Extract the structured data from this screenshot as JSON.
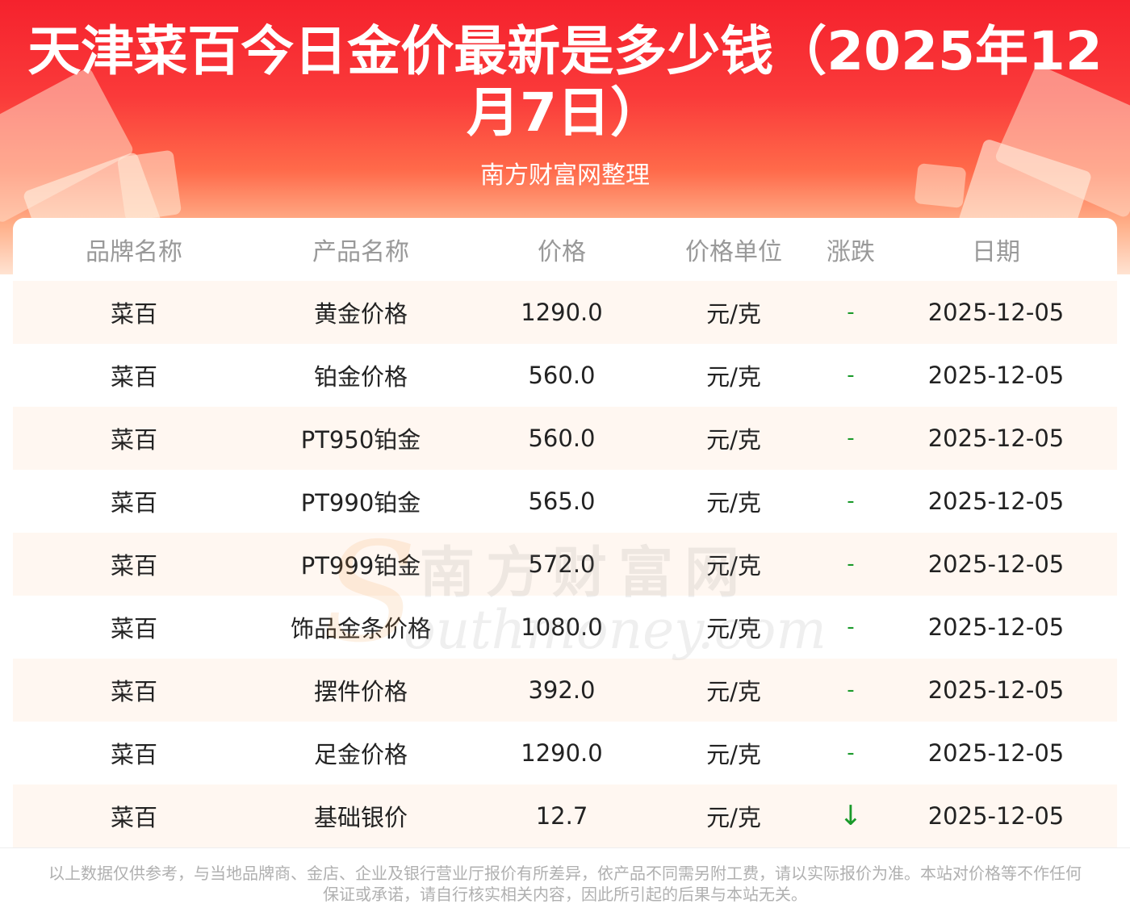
{
  "header": {
    "title": "天津菜百今日金价最新是多少钱（2025年12月7日）",
    "subtitle": "南方财富网整理"
  },
  "colors": {
    "header_red": "#f5222d",
    "row_alt": "#fff7f1",
    "change_green": "#1a9a2a",
    "header_text": "#999999"
  },
  "table": {
    "columns": [
      "品牌名称",
      "产品名称",
      "价格",
      "价格单位",
      "涨跌",
      "日期"
    ],
    "rows": [
      {
        "brand": "菜百",
        "product": "黄金价格",
        "price": "1290.0",
        "unit": "元/克",
        "change": "-",
        "date": "2025-12-05"
      },
      {
        "brand": "菜百",
        "product": "铂金价格",
        "price": "560.0",
        "unit": "元/克",
        "change": "-",
        "date": "2025-12-05"
      },
      {
        "brand": "菜百",
        "product": "PT950铂金",
        "price": "560.0",
        "unit": "元/克",
        "change": "-",
        "date": "2025-12-05"
      },
      {
        "brand": "菜百",
        "product": "PT990铂金",
        "price": "565.0",
        "unit": "元/克",
        "change": "-",
        "date": "2025-12-05"
      },
      {
        "brand": "菜百",
        "product": "PT999铂金",
        "price": "572.0",
        "unit": "元/克",
        "change": "-",
        "date": "2025-12-05"
      },
      {
        "brand": "菜百",
        "product": "饰品金条价格",
        "price": "1080.0",
        "unit": "元/克",
        "change": "-",
        "date": "2025-12-05"
      },
      {
        "brand": "菜百",
        "product": "摆件价格",
        "price": "392.0",
        "unit": "元/克",
        "change": "-",
        "date": "2025-12-05"
      },
      {
        "brand": "菜百",
        "product": "足金价格",
        "price": "1290.0",
        "unit": "元/克",
        "change": "-",
        "date": "2025-12-05"
      },
      {
        "brand": "菜百",
        "product": "基础银价",
        "price": "12.7",
        "unit": "元/克",
        "change": "↓",
        "date": "2025-12-05"
      }
    ]
  },
  "watermark": {
    "cn": "南方财富网",
    "en": "outhmoney.com",
    "logo_letter": "S"
  },
  "footer": {
    "disclaimer": "以上数据仅供参考，与当地品牌商、金店、企业及银行营业厅报价有所差异，依产品不同需另附工费，请以实际报价为准。本站对价格等不作任何保证或承诺，请自行核实相关内容，因此所引起的后果与本站无关。"
  }
}
